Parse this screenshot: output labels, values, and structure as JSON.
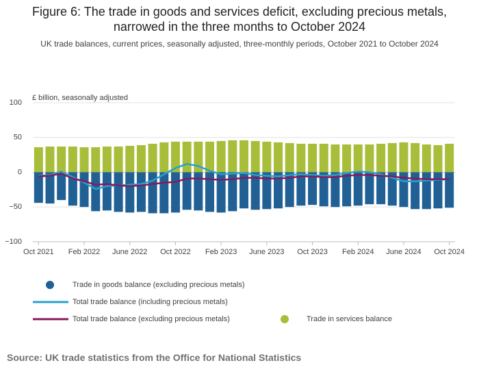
{
  "chart_data": {
    "type": "bar",
    "title": "Figure 6: The trade in goods and services deficit, excluding precious metals, narrowed in the three months to October 2024",
    "subtitle": "UK trade balances, current prices, seasonally adjusted, three-monthly periods, October 2021 to October 2024",
    "y_label": "£ billion, seasonally adjusted",
    "source": "Source: UK trade statistics from the Office for National Statistics",
    "categories": [
      "Oct 2021",
      null,
      null,
      null,
      "Feb 2022",
      null,
      null,
      null,
      "June 2022",
      null,
      null,
      null,
      "Oct 2022",
      null,
      null,
      null,
      "Feb 2023",
      null,
      null,
      null,
      "June 2023",
      null,
      null,
      null,
      "Oct 2023",
      null,
      null,
      null,
      "Feb 2024",
      null,
      null,
      null,
      "June 2024",
      null,
      null,
      null,
      "Oct 2024"
    ],
    "series": [
      {
        "name": "Trade in goods balance (excluding precious metals)",
        "color": "#206095",
        "kind": "bar",
        "values": [
          -44,
          -45,
          -40,
          -48,
          -50,
          -56,
          -55,
          -57,
          -58,
          -57,
          -59,
          -59,
          -58,
          -54,
          -55,
          -57,
          -58,
          -56,
          -52,
          -54,
          -53,
          -52,
          -50,
          -48,
          -47,
          -49,
          -50,
          -49,
          -48,
          -46,
          -46,
          -48,
          -50,
          -53,
          -53,
          -52,
          -51
        ]
      },
      {
        "name": "Total trade balance (including precious metals)",
        "color": "#27a0cc",
        "kind": "line",
        "values": [
          -5,
          -4,
          1,
          -7,
          -15,
          -24,
          -20,
          -19,
          -18,
          -17,
          -12,
          -3,
          6,
          12,
          9,
          2,
          -3,
          -2,
          -1,
          -4,
          -5,
          -6,
          -4,
          -3,
          -4,
          -5,
          -4,
          -1,
          1,
          0,
          -3,
          -8,
          -13,
          -13,
          -12,
          -11,
          -10
        ]
      },
      {
        "name": "Total trade balance (excluding precious metals)",
        "color": "#871a5b",
        "kind": "line",
        "values": [
          -6,
          -5,
          -2,
          -9,
          -13,
          -18,
          -17,
          -19,
          -20,
          -19,
          -17,
          -15,
          -14,
          -9,
          -9,
          -10,
          -11,
          -10,
          -8,
          -8,
          -9,
          -9,
          -8,
          -6,
          -6,
          -7,
          -7,
          -5,
          -4,
          -4,
          -5,
          -6,
          -8,
          -9,
          -10,
          -10,
          -10
        ]
      },
      {
        "name": "Trade in services balance",
        "color": "#a8bd3a",
        "kind": "bar",
        "values": [
          36,
          37,
          37,
          37,
          36,
          36,
          37,
          37,
          38,
          39,
          41,
          43,
          44,
          44,
          44,
          44,
          45,
          46,
          46,
          45,
          44,
          43,
          42,
          41,
          41,
          41,
          40,
          40,
          40,
          40,
          41,
          42,
          43,
          42,
          40,
          39,
          41
        ]
      }
    ],
    "ylim": [
      -100,
      100
    ],
    "yticks": [
      {
        "value": -100,
        "label": "−100"
      },
      {
        "value": -50,
        "label": "−50"
      },
      0,
      50,
      100
    ],
    "grid": true
  }
}
